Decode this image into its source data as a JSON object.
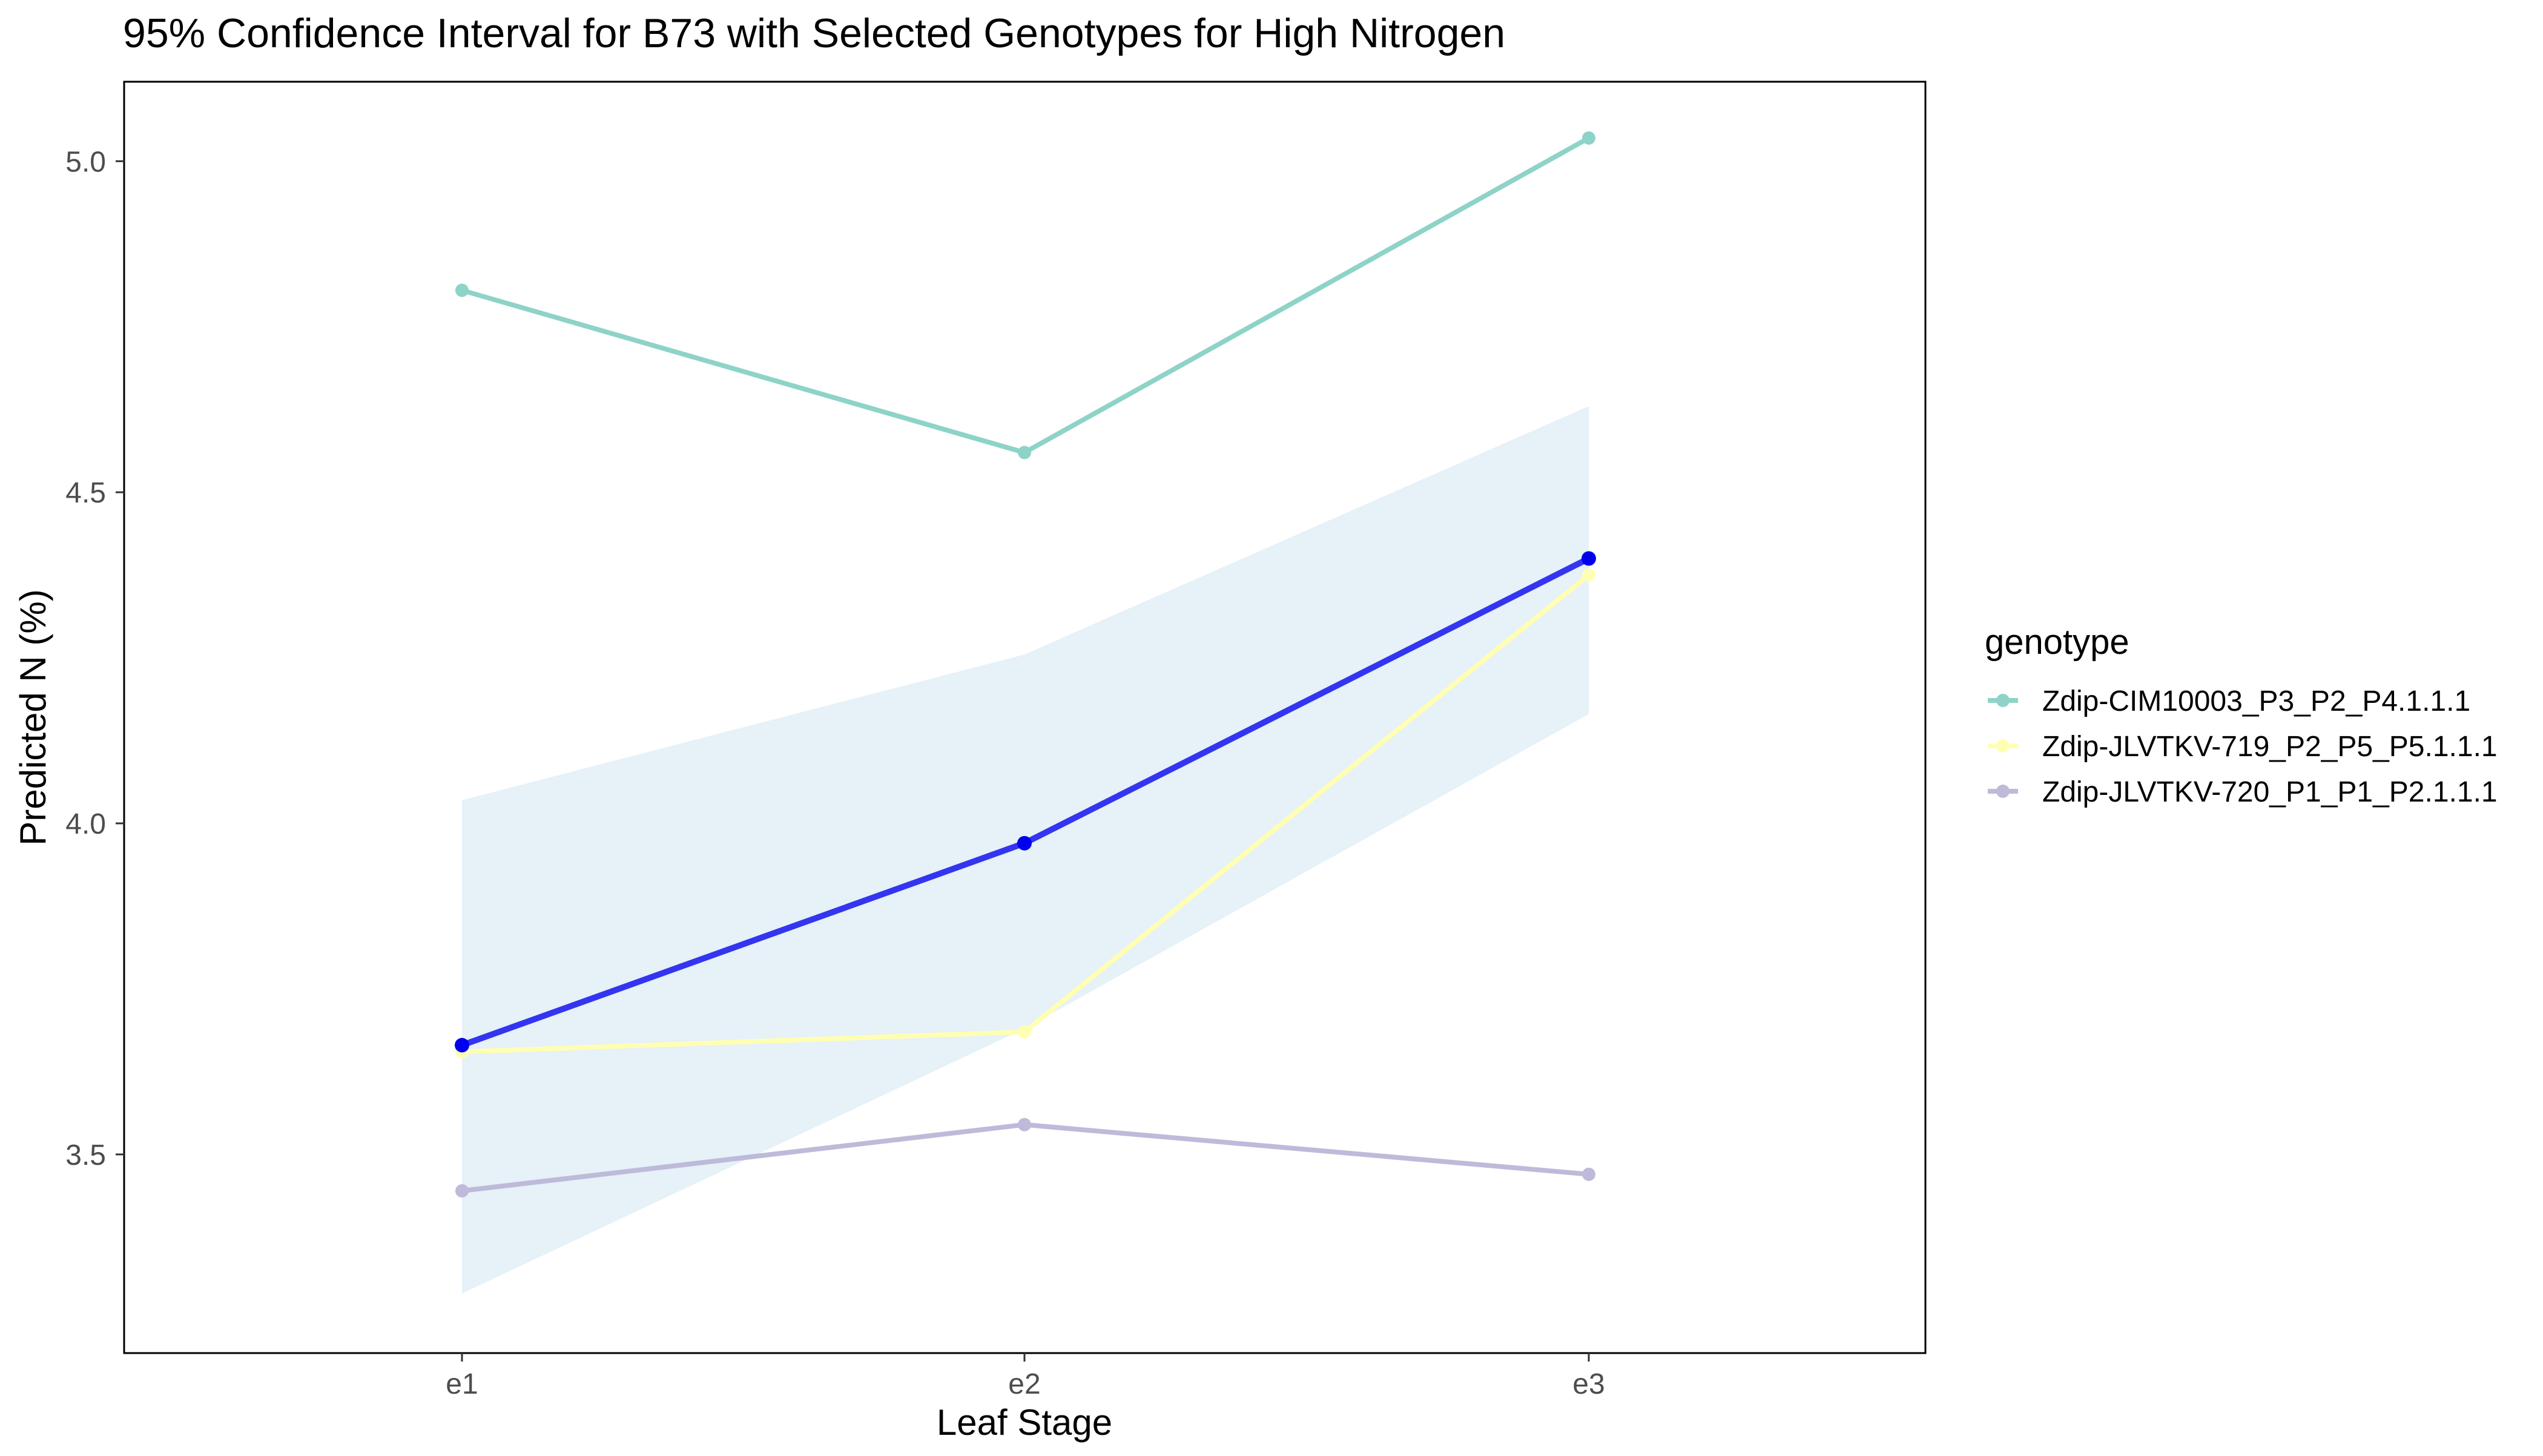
{
  "chart_data": {
    "type": "line",
    "title": "95% Confidence Interval for B73 with Selected Genotypes for High Nitrogen",
    "xlabel": "Leaf Stage",
    "ylabel": "Predicted N (%)",
    "categories": [
      "e1",
      "e2",
      "e3"
    ],
    "ylim": [
      3.2,
      5.12
    ],
    "yticks": [
      3.5,
      4.0,
      4.5,
      5.0
    ],
    "ytick_labels": [
      "3.5",
      "4.0",
      "4.5",
      "5.0"
    ],
    "grid": false,
    "legend": {
      "title": "genotype",
      "position": "right"
    },
    "reference": {
      "values": [
        3.665,
        3.97,
        4.4
      ],
      "color": "#0000ee",
      "ci_lower": [
        3.29,
        3.69,
        4.165
      ],
      "ci_upper": [
        4.035,
        4.255,
        4.63
      ],
      "ci_color": "#e6f1f8"
    },
    "series": [
      {
        "name": "Zdip-CIM10003_P3_P2_P4.1.1.1",
        "color": "#8ed3c7",
        "values": [
          4.805,
          4.56,
          5.035
        ]
      },
      {
        "name": "Zdip-JLVTKV-719_P2_P5_P5.1.1.1",
        "color": "#ffffb3",
        "values": [
          3.655,
          3.685,
          4.375
        ]
      },
      {
        "name": "Zdip-JLVTKV-720_P1_P1_P2.1.1.1",
        "color": "#bebada",
        "values": [
          3.445,
          3.545,
          3.47
        ]
      }
    ]
  }
}
